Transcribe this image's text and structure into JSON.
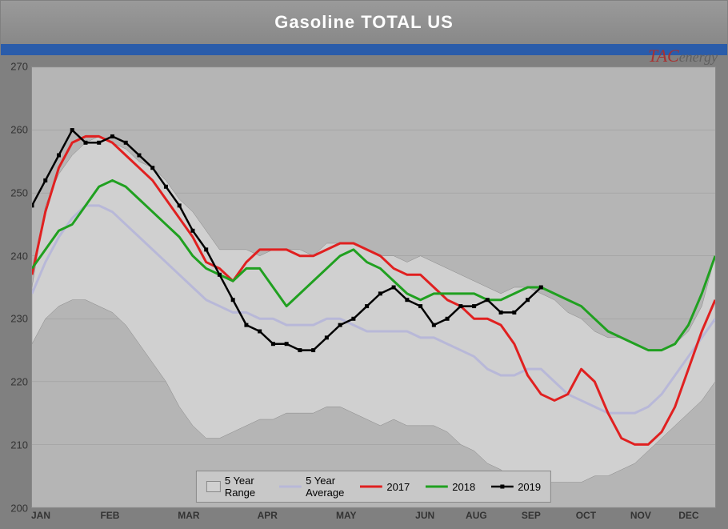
{
  "chart": {
    "title": "Gasoline TOTAL US",
    "logo_main": "TAC",
    "logo_sub": "energy",
    "type": "line",
    "background_color": "#b5b5b5",
    "frame_color": "#808080",
    "blue_band_color": "#2a5caa",
    "title_color": "#ffffff",
    "title_fontsize": 22,
    "grid_color": "#bababa",
    "ylim": [
      200,
      270
    ],
    "ytick_step": 10,
    "yticks": [
      200,
      210,
      220,
      230,
      240,
      250,
      260,
      270
    ],
    "x_categories": [
      "JAN",
      "FEB",
      "MAR",
      "APR",
      "MAY",
      "JUN",
      "AUG",
      "SEP",
      "OCT",
      "NOV",
      "DEC"
    ],
    "x_positions_pct": [
      0,
      11.5,
      23,
      34.5,
      46,
      57.5,
      65,
      73,
      81,
      89,
      97.5
    ],
    "weeks": 52,
    "series": {
      "range_upper": {
        "label": "5 Year Range",
        "color_fill": "#d0d0d0",
        "values": [
          235,
          248,
          253,
          256,
          258,
          259,
          258,
          257,
          255,
          254,
          252,
          249,
          247,
          244,
          241,
          241,
          241,
          240,
          241,
          241,
          241,
          240,
          242,
          242,
          242,
          241,
          240,
          240,
          239,
          240,
          239,
          238,
          237,
          236,
          235,
          234,
          235,
          235,
          234,
          233,
          231,
          230,
          228,
          227,
          227,
          226,
          225,
          225,
          226,
          228,
          232,
          240
        ]
      },
      "range_lower": {
        "values": [
          226,
          230,
          232,
          233,
          233,
          232,
          231,
          229,
          226,
          223,
          220,
          216,
          213,
          211,
          211,
          212,
          213,
          214,
          214,
          215,
          215,
          215,
          216,
          216,
          215,
          214,
          213,
          214,
          213,
          213,
          213,
          212,
          210,
          209,
          207,
          206,
          204,
          204,
          204,
          204,
          204,
          204,
          205,
          205,
          206,
          207,
          209,
          211,
          213,
          215,
          217,
          220
        ]
      },
      "avg": {
        "label": "5 Year Average",
        "color": "#b8b8d8",
        "line_width": 3,
        "values": [
          234,
          239,
          243,
          246,
          248,
          248,
          247,
          245,
          243,
          241,
          239,
          237,
          235,
          233,
          232,
          231,
          231,
          230,
          230,
          229,
          229,
          229,
          230,
          230,
          229,
          228,
          228,
          228,
          228,
          227,
          227,
          226,
          225,
          224,
          222,
          221,
          221,
          222,
          222,
          220,
          218,
          217,
          216,
          215,
          215,
          215,
          216,
          218,
          221,
          224,
          227,
          230
        ]
      },
      "y2017": {
        "label": "2017",
        "color": "#e02020",
        "line_width": 3,
        "values": [
          237,
          247,
          254,
          258,
          259,
          259,
          258,
          256,
          254,
          252,
          249,
          246,
          243,
          239,
          238,
          236,
          239,
          241,
          241,
          241,
          240,
          240,
          241,
          242,
          242,
          241,
          240,
          238,
          237,
          237,
          235,
          233,
          232,
          230,
          230,
          229,
          226,
          221,
          218,
          217,
          218,
          222,
          220,
          215,
          211,
          210,
          210,
          212,
          216,
          222,
          228,
          233
        ]
      },
      "y2018": {
        "label": "2018",
        "color": "#20a020",
        "line_width": 3,
        "values": [
          238,
          241,
          244,
          245,
          248,
          251,
          252,
          251,
          249,
          247,
          245,
          243,
          240,
          238,
          237,
          236,
          238,
          238,
          235,
          232,
          234,
          236,
          238,
          240,
          241,
          239,
          238,
          236,
          234,
          233,
          234,
          234,
          234,
          234,
          233,
          233,
          234,
          235,
          235,
          234,
          233,
          232,
          230,
          228,
          227,
          226,
          225,
          225,
          226,
          229,
          234,
          240
        ]
      },
      "y2019": {
        "label": "2019",
        "color": "#000000",
        "line_width": 2.5,
        "marker": "square",
        "marker_size": 5,
        "values": [
          248,
          252,
          256,
          260,
          258,
          258,
          259,
          258,
          256,
          254,
          251,
          248,
          244,
          241,
          237,
          233,
          229,
          228,
          226,
          226,
          225,
          225,
          227,
          229,
          230,
          232,
          234,
          235,
          233,
          232,
          229,
          230,
          232,
          232,
          233,
          231,
          231,
          233,
          235
        ]
      }
    },
    "legend": {
      "items": [
        {
          "label": "5 Year Range",
          "type": "area",
          "fill": "#d0d0d0",
          "border": "#888"
        },
        {
          "label": "5 Year Average",
          "type": "line",
          "color": "#b8b8d8"
        },
        {
          "label": "2017",
          "type": "line",
          "color": "#e02020"
        },
        {
          "label": "2018",
          "type": "line",
          "color": "#20a020"
        },
        {
          "label": "2019",
          "type": "line-marker",
          "color": "#000000"
        }
      ]
    }
  }
}
